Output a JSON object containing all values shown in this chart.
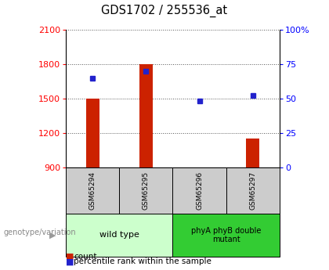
{
  "title": "GDS1702 / 255536_at",
  "samples": [
    "GSM65294",
    "GSM65295",
    "GSM65296",
    "GSM65297"
  ],
  "counts": [
    1500,
    1800,
    870,
    1150
  ],
  "percentiles": [
    65,
    70,
    48,
    52
  ],
  "ylim_left": [
    900,
    2100
  ],
  "ylim_right": [
    0,
    100
  ],
  "yticks_left": [
    900,
    1200,
    1500,
    1800,
    2100
  ],
  "yticks_right": [
    0,
    25,
    50,
    75,
    100
  ],
  "ytick_labels_right": [
    "0",
    "25",
    "50",
    "75",
    "100%"
  ],
  "bar_color": "#cc2200",
  "marker_color": "#2222cc",
  "group1_label": "wild type",
  "group2_label": "phyA phyB double\nmutant",
  "group1_color": "#ccffcc",
  "group2_color": "#33cc33",
  "sample_box_color": "#cccccc",
  "genotype_label": "genotype/variation",
  "legend_count": "count",
  "legend_percentile": "percentile rank within the sample",
  "dotted_line_color": "#555555",
  "background_color": "#ffffff"
}
